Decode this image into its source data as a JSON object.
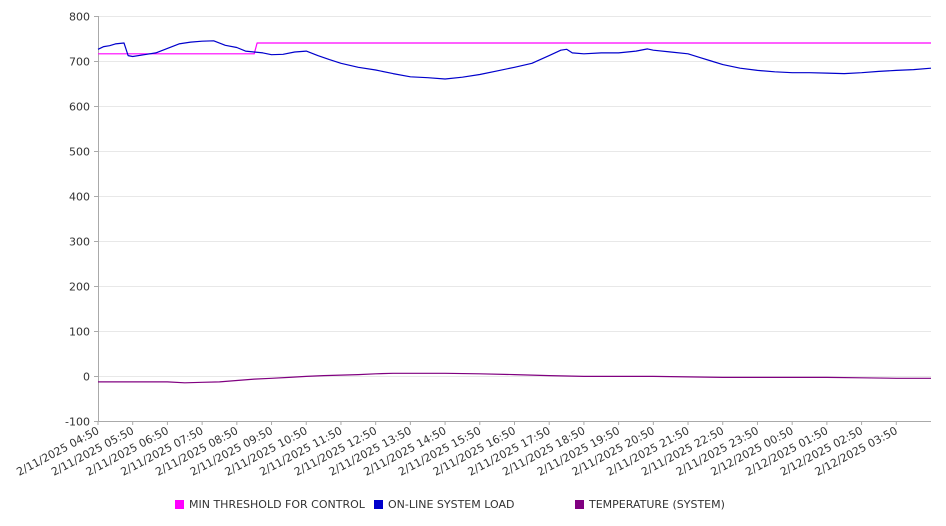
{
  "chart_data": {
    "type": "line",
    "title": "",
    "xlabel": "",
    "ylabel": "",
    "ylim": [
      -100,
      800
    ],
    "yticks": [
      -100,
      0,
      100,
      200,
      300,
      400,
      500,
      600,
      700,
      800
    ],
    "grid": true,
    "legend_position": "bottom",
    "x_start": "2/11/2025 04:50",
    "x_end": "2/12/2025 04:50",
    "x_tick_labels": [
      "2/11/2025 04:50",
      "2/11/2025 05:50",
      "2/11/2025 06:50",
      "2/11/2025 07:50",
      "2/11/2025 08:50",
      "2/11/2025 09:50",
      "2/11/2025 10:50",
      "2/11/2025 11:50",
      "2/11/2025 12:50",
      "2/11/2025 13:50",
      "2/11/2025 14:50",
      "2/11/2025 15:50",
      "2/11/2025 16:50",
      "2/11/2025 17:50",
      "2/11/2025 18:50",
      "2/11/2025 19:50",
      "2/11/2025 20:50",
      "2/11/2025 21:50",
      "2/11/2025 22:50",
      "2/11/2025 23:50",
      "2/12/2025 00:50",
      "2/12/2025 01:50",
      "2/12/2025 02:50",
      "2/12/2025 03:50"
    ],
    "series": [
      {
        "name": "MIN THRESHOLD FOR CONTROL",
        "color": "#ff00ff",
        "points": [
          [
            "2/11/2025 04:50",
            716
          ],
          [
            "2/11/2025 09:20",
            716
          ],
          [
            "2/11/2025 09:25",
            740
          ],
          [
            "2/12/2025 04:50",
            740
          ]
        ]
      },
      {
        "name": "ON-LINE SYSTEM LOAD",
        "color": "#0000cc",
        "points": [
          [
            "2/11/2025 04:50",
            726
          ],
          [
            "2/11/2025 05:00",
            732
          ],
          [
            "2/11/2025 05:10",
            734
          ],
          [
            "2/11/2025 05:20",
            738
          ],
          [
            "2/11/2025 05:35",
            740
          ],
          [
            "2/11/2025 05:38",
            728
          ],
          [
            "2/11/2025 05:42",
            712
          ],
          [
            "2/11/2025 05:50",
            710
          ],
          [
            "2/11/2025 06:10",
            714
          ],
          [
            "2/11/2025 06:30",
            718
          ],
          [
            "2/11/2025 06:50",
            728
          ],
          [
            "2/11/2025 07:10",
            738
          ],
          [
            "2/11/2025 07:30",
            742
          ],
          [
            "2/11/2025 07:50",
            744
          ],
          [
            "2/11/2025 08:10",
            745
          ],
          [
            "2/11/2025 08:30",
            735
          ],
          [
            "2/11/2025 08:50",
            730
          ],
          [
            "2/11/2025 09:05",
            722
          ],
          [
            "2/11/2025 09:20",
            720
          ],
          [
            "2/11/2025 09:35",
            718
          ],
          [
            "2/11/2025 09:50",
            714
          ],
          [
            "2/11/2025 10:10",
            715
          ],
          [
            "2/11/2025 10:30",
            720
          ],
          [
            "2/11/2025 10:50",
            722
          ],
          [
            "2/11/2025 11:10",
            712
          ],
          [
            "2/11/2025 11:30",
            703
          ],
          [
            "2/11/2025 11:50",
            695
          ],
          [
            "2/11/2025 12:20",
            686
          ],
          [
            "2/11/2025 12:50",
            680
          ],
          [
            "2/11/2025 13:20",
            672
          ],
          [
            "2/11/2025 13:50",
            665
          ],
          [
            "2/11/2025 14:20",
            663
          ],
          [
            "2/11/2025 14:50",
            660
          ],
          [
            "2/11/2025 15:20",
            664
          ],
          [
            "2/11/2025 15:50",
            670
          ],
          [
            "2/11/2025 16:20",
            678
          ],
          [
            "2/11/2025 16:50",
            686
          ],
          [
            "2/11/2025 17:20",
            695
          ],
          [
            "2/11/2025 17:50",
            712
          ],
          [
            "2/11/2025 18:10",
            724
          ],
          [
            "2/11/2025 18:20",
            726
          ],
          [
            "2/11/2025 18:30",
            718
          ],
          [
            "2/11/2025 18:50",
            716
          ],
          [
            "2/11/2025 19:20",
            718
          ],
          [
            "2/11/2025 19:50",
            718
          ],
          [
            "2/11/2025 20:20",
            722
          ],
          [
            "2/11/2025 20:40",
            727
          ],
          [
            "2/11/2025 20:50",
            724
          ],
          [
            "2/11/2025 21:20",
            720
          ],
          [
            "2/11/2025 21:50",
            716
          ],
          [
            "2/11/2025 22:10",
            708
          ],
          [
            "2/11/2025 22:30",
            700
          ],
          [
            "2/11/2025 22:50",
            692
          ],
          [
            "2/11/2025 23:20",
            684
          ],
          [
            "2/11/2025 23:50",
            679
          ],
          [
            "2/12/2025 00:20",
            676
          ],
          [
            "2/12/2025 00:50",
            674
          ],
          [
            "2/12/2025 01:20",
            674
          ],
          [
            "2/12/2025 01:50",
            673
          ],
          [
            "2/12/2025 02:20",
            672
          ],
          [
            "2/12/2025 02:50",
            674
          ],
          [
            "2/12/2025 03:20",
            677
          ],
          [
            "2/12/2025 03:50",
            679
          ],
          [
            "2/12/2025 04:20",
            681
          ],
          [
            "2/12/2025 04:50",
            684
          ]
        ]
      },
      {
        "name": "TEMPERATURE (SYSTEM)",
        "color": "#800080",
        "points": [
          [
            "2/11/2025 04:50",
            -13
          ],
          [
            "2/11/2025 06:50",
            -13
          ],
          [
            "2/11/2025 07:20",
            -15
          ],
          [
            "2/11/2025 07:50",
            -14
          ],
          [
            "2/11/2025 08:20",
            -13
          ],
          [
            "2/11/2025 08:50",
            -10
          ],
          [
            "2/11/2025 09:20",
            -7
          ],
          [
            "2/11/2025 09:50",
            -5
          ],
          [
            "2/11/2025 10:20",
            -3
          ],
          [
            "2/11/2025 10:50",
            -1
          ],
          [
            "2/11/2025 11:20",
            1
          ],
          [
            "2/11/2025 11:50",
            2
          ],
          [
            "2/11/2025 12:20",
            3
          ],
          [
            "2/11/2025 12:50",
            5
          ],
          [
            "2/11/2025 13:20",
            6
          ],
          [
            "2/11/2025 13:50",
            6
          ],
          [
            "2/11/2025 14:50",
            6
          ],
          [
            "2/11/2025 15:50",
            5
          ],
          [
            "2/11/2025 16:50",
            3
          ],
          [
            "2/11/2025 17:50",
            1
          ],
          [
            "2/11/2025 18:50",
            -1
          ],
          [
            "2/11/2025 19:50",
            -1
          ],
          [
            "2/11/2025 20:50",
            -1
          ],
          [
            "2/11/2025 21:50",
            -2
          ],
          [
            "2/11/2025 22:50",
            -3
          ],
          [
            "2/11/2025 23:50",
            -3
          ],
          [
            "2/12/2025 00:50",
            -3
          ],
          [
            "2/12/2025 01:50",
            -3
          ],
          [
            "2/12/2025 02:50",
            -4
          ],
          [
            "2/12/2025 03:50",
            -5
          ],
          [
            "2/12/2025 04:50",
            -5
          ]
        ]
      }
    ]
  },
  "colors": {
    "grid": "#e8e8e8",
    "axis": "#aaaaaa",
    "text": "#333333"
  }
}
